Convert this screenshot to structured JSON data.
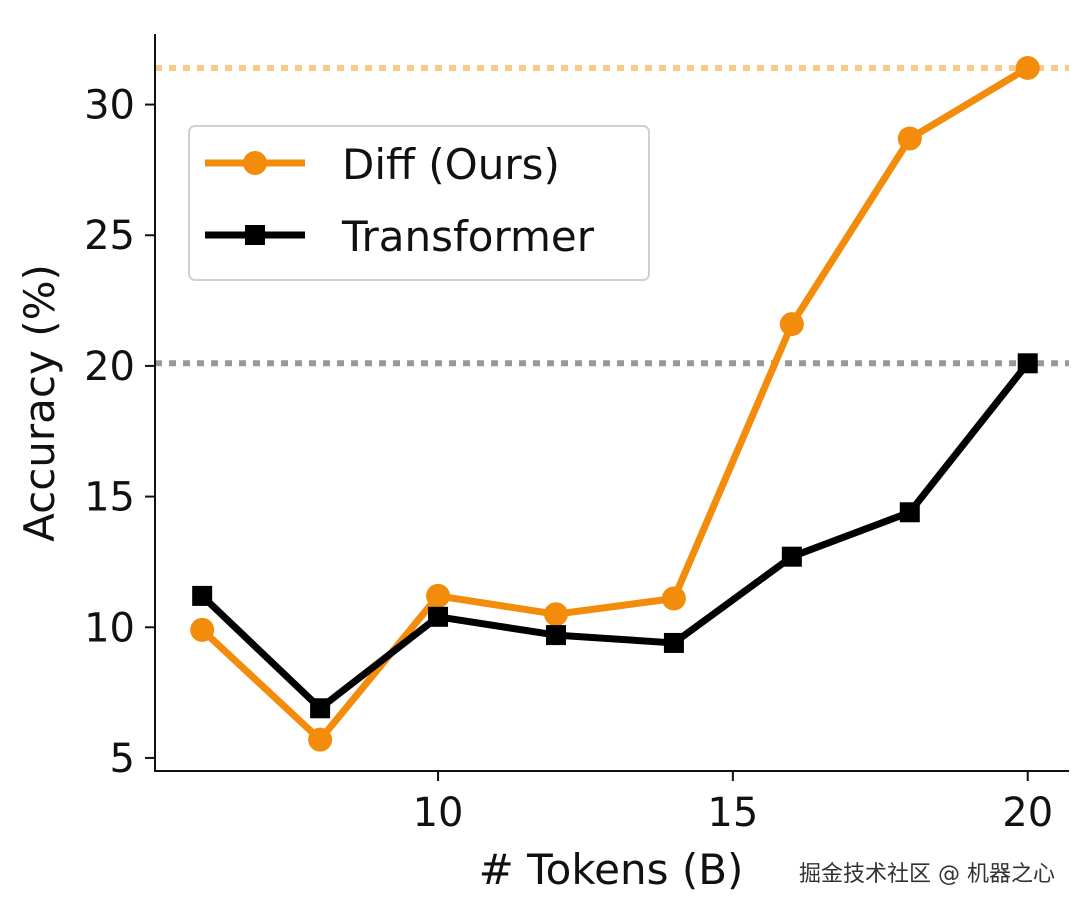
{
  "chart_data": {
    "type": "line",
    "title": "",
    "xlabel": "# Tokens (B)",
    "ylabel": "Accuracy (%)",
    "xlim": [
      5.2,
      20.7
    ],
    "ylim": [
      4.5,
      32.7
    ],
    "xticks": [
      10,
      15,
      20
    ],
    "yticks": [
      5,
      10,
      15,
      20,
      25,
      30
    ],
    "grid": false,
    "legend_position": "upper-left",
    "reference_lines": [
      {
        "y": 31.4,
        "color": "#f9c98a",
        "style": "dotted"
      },
      {
        "y": 20.1,
        "color": "#999999",
        "style": "dotted"
      }
    ],
    "series": [
      {
        "name": "Diff (Ours)",
        "color": "#f28c0a",
        "marker": "circle",
        "x": [
          6,
          8,
          10,
          12,
          14,
          16,
          18,
          20
        ],
        "y": [
          9.9,
          5.7,
          11.2,
          10.5,
          11.1,
          21.6,
          28.7,
          31.4
        ]
      },
      {
        "name": "Transformer",
        "color": "#000000",
        "marker": "square",
        "x": [
          6,
          8,
          10,
          12,
          14,
          16,
          18,
          20
        ],
        "y": [
          11.2,
          6.9,
          10.4,
          9.7,
          9.4,
          12.7,
          14.4,
          20.1
        ]
      }
    ]
  },
  "watermark": "掘金技术社区 @ 机器之心"
}
